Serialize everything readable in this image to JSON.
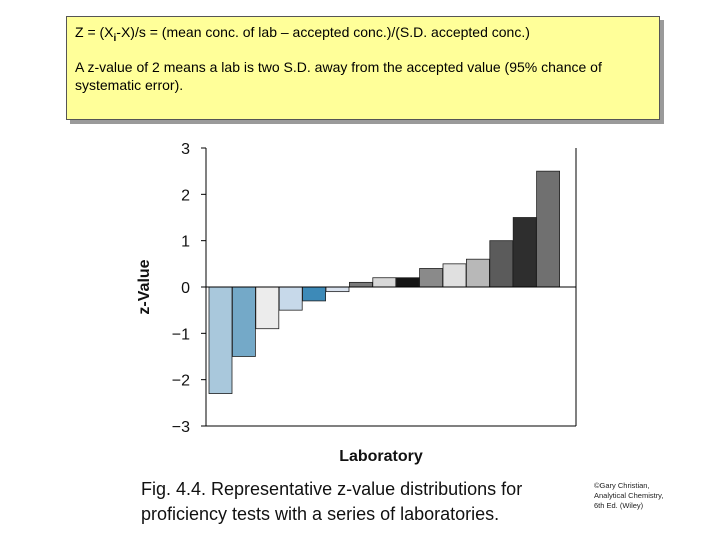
{
  "note": {
    "formula_prefix": "Z = (X",
    "formula_sub": "i",
    "formula_suffix": "-X)/s = (mean conc. of lab – accepted conc.)/(S.D. accepted conc.)",
    "explanation": "A z-value of 2 means a lab is two S.D. away from the accepted value (95% chance of systematic error)."
  },
  "chart_data": {
    "type": "bar",
    "title": "",
    "xlabel": "Laboratory",
    "ylabel": "z-Value",
    "ylim": [
      -3,
      3
    ],
    "yticks": [
      3,
      2,
      1,
      0,
      -1,
      -2,
      -3
    ],
    "ytick_labels": [
      "3",
      "2",
      "1",
      "0",
      "−1",
      "−2",
      "−3"
    ],
    "grid": false,
    "values": [
      -2.3,
      -1.5,
      -0.9,
      -0.5,
      -0.3,
      -0.1,
      0.1,
      0.2,
      0.2,
      0.4,
      0.5,
      0.6,
      1.0,
      1.5,
      2.5
    ],
    "colors": [
      "#a9c8dc",
      "#74a9c8",
      "#ececec",
      "#c7d9ea",
      "#3d8ab8",
      "#d9e2ee",
      "#7a7a7a",
      "#d8d8d8",
      "#151515",
      "#8a8a8a",
      "#e0e0e0",
      "#b8b8b8",
      "#5b5b5b",
      "#2e2e2e",
      "#707070"
    ]
  },
  "caption": "Fig. 4.4. Representative z-value distributions for proficiency tests with a series of laboratories.",
  "credit": [
    "©Gary Christian,",
    "Analytical Chemistry,",
    "6th Ed. (Wiley)"
  ]
}
